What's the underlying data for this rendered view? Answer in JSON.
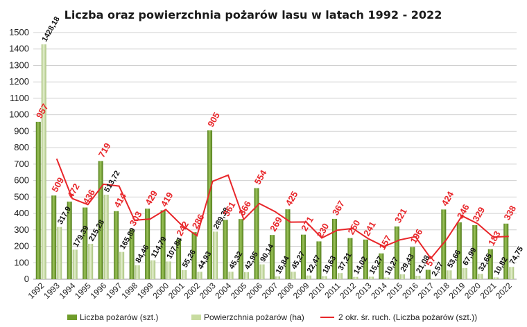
{
  "chart_data": {
    "type": "bar",
    "title": "Liczba oraz powierzchnia pożarów lasu w latach 1992 - 2022",
    "ylim": [
      0,
      1500
    ],
    "yticks": [
      "0",
      "100",
      "200",
      "300",
      "400",
      "500",
      "600",
      "700",
      "800",
      "900",
      "1000",
      "1100",
      "1200",
      "1300",
      "1400",
      "1500"
    ],
    "grid": true,
    "legend_position": "bottom",
    "categories": [
      "1992",
      "1993",
      "1994",
      "1995",
      "1996",
      "1997",
      "1998",
      "1999",
      "2000",
      "2001",
      "2002",
      "2003",
      "2004",
      "2005",
      "2006",
      "2007",
      "2008",
      "2009",
      "2010",
      "2011",
      "2012",
      "2013",
      "2014",
      "2015",
      "2016",
      "2017",
      "2018",
      "2019",
      "2020",
      "2021",
      "2022"
    ],
    "series": [
      {
        "name": "Liczba pożarów (szt.)",
        "kind": "bar",
        "color": "#6f9c2a",
        "values": [
          957,
          509,
          472,
          436,
          719,
          414,
          303,
          429,
          419,
          242,
          286,
          905,
          361,
          366,
          554,
          269,
          425,
          271,
          230,
          367,
          250,
          241,
          157,
          321,
          196,
          57,
          424,
          346,
          329,
          183,
          338
        ],
        "labels": [
          "957",
          "509",
          "472",
          "436",
          "719",
          "414",
          "303",
          "429",
          "419",
          "242",
          "286",
          "905",
          "361",
          "366",
          "554",
          "269",
          "425",
          "271",
          "230",
          "367",
          "250",
          "241",
          "157",
          "321",
          "196",
          "57",
          "424",
          "346",
          "329",
          "183",
          "338"
        ]
      },
      {
        "name": "Powierzchnia pożarów (ha)",
        "kind": "bar",
        "color": "#c8dca0",
        "values": [
          1428.18,
          317.9,
          179.39,
          215.28,
          513.72,
          165.89,
          84.46,
          114.79,
          107.84,
          55.26,
          44.93,
          289.38,
          45.32,
          42.95,
          90.14,
          16.84,
          45.27,
          22.47,
          18.63,
          37.21,
          14.02,
          15.27,
          10.27,
          29.43,
          21.08,
          2.57,
          53.66,
          67.99,
          32.65,
          10.82,
          74.75
        ],
        "labels": [
          "1428,18",
          "317,9",
          "179,39",
          "215,28",
          "513,72",
          "165,89",
          "84,46",
          "114,79",
          "107,84",
          "55,26",
          "44,93",
          "289,38",
          "45,32",
          "42,95",
          "90,14",
          "16,84",
          "45,27",
          "22,47",
          "18,63",
          "37,21",
          "14,02",
          "15,27",
          "10,27",
          "29,43",
          "21,08",
          "2,57",
          "53,66",
          "67,99",
          "32,65",
          "10,82",
          "74,75"
        ]
      },
      {
        "name": "2 okr. śr. ruch. (Liczba pożarów (szt.))",
        "kind": "line",
        "color": "#e8262a",
        "values": [
          null,
          733,
          490.5,
          454,
          577.5,
          566.5,
          358.5,
          366,
          424,
          330.5,
          264,
          595.5,
          633,
          363.5,
          460,
          411.5,
          347,
          348,
          250.5,
          298.5,
          308.5,
          245.5,
          199,
          239,
          258.5,
          126.5,
          240.5,
          385,
          337.5,
          256,
          260.5
        ]
      }
    ]
  }
}
